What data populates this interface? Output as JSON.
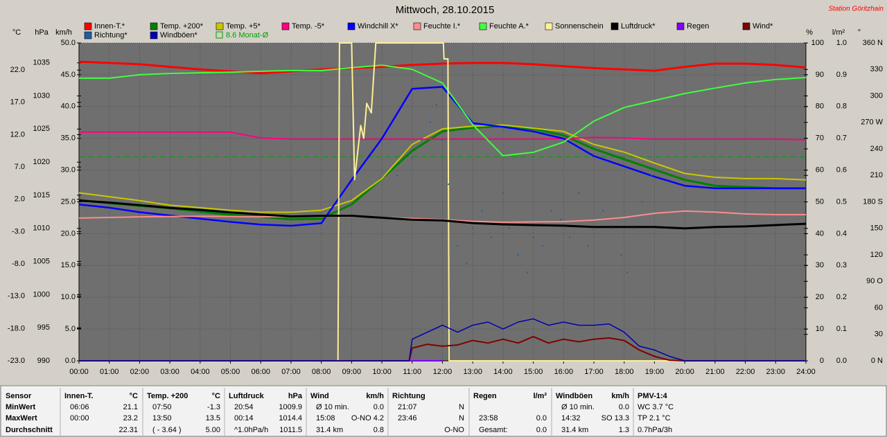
{
  "chart_data": {
    "type": "line",
    "title": "Mittwoch, 28.10.2015",
    "station": "Station Göritzhain",
    "xlim": [
      0,
      24
    ],
    "xticks": [
      {
        "value": 0,
        "label": "00:00"
      },
      {
        "value": 1,
        "label": "01:00"
      },
      {
        "value": 2,
        "label": "02:00"
      },
      {
        "value": 3,
        "label": "03:00"
      },
      {
        "value": 4,
        "label": "04:00"
      },
      {
        "value": 5,
        "label": "05:00"
      },
      {
        "value": 6,
        "label": "06:00"
      },
      {
        "value": 7,
        "label": "07:00"
      },
      {
        "value": 8,
        "label": "08:00"
      },
      {
        "value": 9,
        "label": "09:00"
      },
      {
        "value": 10,
        "label": "10:00"
      },
      {
        "value": 11,
        "label": "11:00"
      },
      {
        "value": 12,
        "label": "12:00"
      },
      {
        "value": 13,
        "label": "13:00"
      },
      {
        "value": 14,
        "label": "14:00"
      },
      {
        "value": 15,
        "label": "15:00"
      },
      {
        "value": 16,
        "label": "16:00"
      },
      {
        "value": 17,
        "label": "17:00"
      },
      {
        "value": 18,
        "label": "18:00"
      },
      {
        "value": 19,
        "label": "19:00"
      },
      {
        "value": 20,
        "label": "20:00"
      },
      {
        "value": 21,
        "label": "21:00"
      },
      {
        "value": 22,
        "label": "22:00"
      },
      {
        "value": 23,
        "label": "23:00"
      },
      {
        "value": 24,
        "label": "24:00"
      }
    ],
    "grid": true,
    "grid_axis": 2,
    "x": [
      0,
      1,
      2,
      3,
      4,
      5,
      6,
      7,
      8,
      9,
      10,
      11,
      12,
      13,
      14,
      15,
      16,
      17,
      18,
      19,
      20,
      21,
      22,
      23,
      24
    ],
    "y_axes": [
      {
        "unit": "°C",
        "side": "left",
        "lim": [
          -23,
          26.2
        ],
        "ticks": [
          {
            "value": -23,
            "label": "-23.0"
          },
          {
            "value": -18,
            "label": "-18.0"
          },
          {
            "value": -13,
            "label": "-13.0"
          },
          {
            "value": -8,
            "label": "-8.0"
          },
          {
            "value": -3,
            "label": "-3.0"
          },
          {
            "value": 2,
            "label": "2.0"
          },
          {
            "value": 7,
            "label": "7.0"
          },
          {
            "value": 12,
            "label": "12.0"
          },
          {
            "value": 17,
            "label": "17.0"
          },
          {
            "value": 22,
            "label": "22.0"
          }
        ]
      },
      {
        "unit": "hPa",
        "side": "left",
        "lim": [
          990,
          1038
        ],
        "ticks": [
          990,
          995,
          1000,
          1005,
          1010,
          1015,
          1020,
          1025,
          1030,
          1035
        ]
      },
      {
        "unit": "km/h",
        "side": "left",
        "lim": [
          0,
          50
        ],
        "ticks": [
          {
            "value": 0,
            "label": "0.0"
          },
          {
            "value": 5,
            "label": "5.0"
          },
          {
            "value": 10,
            "label": "10.0"
          },
          {
            "value": 15,
            "label": "15.0"
          },
          {
            "value": 20,
            "label": "20.0"
          },
          {
            "value": 25,
            "label": "25.0"
          },
          {
            "value": 30,
            "label": "30.0"
          },
          {
            "value": 35,
            "label": "35.0"
          },
          {
            "value": 40,
            "label": "40.0"
          },
          {
            "value": 45,
            "label": "45.0"
          },
          {
            "value": 50,
            "label": "50.0"
          }
        ]
      },
      {
        "unit": "%",
        "side": "right",
        "lim": [
          0,
          100
        ],
        "ticks": [
          0,
          10,
          20,
          30,
          40,
          50,
          60,
          70,
          80,
          90,
          100
        ]
      },
      {
        "unit": "l/m²",
        "side": "right",
        "lim": [
          0,
          1
        ],
        "ticks": [
          {
            "value": 0,
            "label": "0.0"
          },
          {
            "value": 0.1,
            "label": "0.1"
          },
          {
            "value": 0.2,
            "label": "0.2"
          },
          {
            "value": 0.3,
            "label": "0.3"
          },
          {
            "value": 0.4,
            "label": "0.4"
          },
          {
            "value": 0.5,
            "label": "0.5"
          },
          {
            "value": 0.6,
            "label": "0.6"
          },
          {
            "value": 0.7,
            "label": "0.7"
          },
          {
            "value": 0.8,
            "label": "0.8"
          },
          {
            "value": 0.9,
            "label": "0.9"
          },
          {
            "value": 1,
            "label": "1.0"
          }
        ]
      },
      {
        "unit": "°",
        "side": "right",
        "lim": [
          0,
          360
        ],
        "ticks": [
          {
            "value": 0,
            "label": "0 N"
          },
          30,
          60,
          {
            "value": 90,
            "label": "90 O"
          },
          120,
          150,
          {
            "value": 180,
            "label": "180 S"
          },
          210,
          240,
          {
            "value": 270,
            "label": "270 W"
          },
          300,
          330,
          {
            "value": 360,
            "label": "360 N"
          }
        ]
      }
    ],
    "series": [
      {
        "name": "Innen-T.*",
        "color": "#ff0000",
        "axis": 0,
        "width": 3,
        "values": [
          23.3,
          23.1,
          22.9,
          22.5,
          22.1,
          21.8,
          21.5,
          21.8,
          22.1,
          22.3,
          22.5,
          22.8,
          23.0,
          23.1,
          23.1,
          22.9,
          22.6,
          22.3,
          22.1,
          21.9,
          22.5,
          23.0,
          23.0,
          22.8,
          22.4
        ]
      },
      {
        "name": "Temp. +200*",
        "color": "#008000",
        "axis": 0,
        "width": 3,
        "values": [
          1.9,
          1.4,
          1.0,
          0.6,
          0.1,
          -0.4,
          -0.7,
          -1.1,
          -1.0,
          1.2,
          5.2,
          9.5,
          12.5,
          13.1,
          13.3,
          12.9,
          11.9,
          9.8,
          8.2,
          6.6,
          5.0,
          4.1,
          3.9,
          3.7,
          3.7
        ]
      },
      {
        "name": "Temp. +5*",
        "color": "#c8c800",
        "axis": 0,
        "width": 2,
        "values": [
          3.0,
          2.4,
          1.8,
          1.1,
          0.7,
          0.3,
          0.0,
          0.0,
          0.3,
          1.8,
          5.2,
          10.5,
          12.9,
          13.3,
          13.5,
          13.0,
          12.5,
          10.5,
          9.3,
          7.6,
          6.0,
          5.4,
          5.2,
          5.2,
          5.0
        ]
      },
      {
        "name": "Temp. -5*",
        "color": "#ff0080",
        "axis": 0,
        "width": 2,
        "values": [
          12.4,
          12.4,
          12.4,
          12.4,
          12.4,
          12.4,
          11.5,
          11.3,
          11.3,
          11.3,
          11.3,
          11.3,
          11.3,
          11.3,
          11.3,
          11.3,
          11.4,
          11.6,
          11.5,
          11.3,
          11.3,
          11.3,
          11.3,
          11.3,
          11.2
        ]
      },
      {
        "name": "Windchill X*",
        "color": "#0000ff",
        "axis": 0,
        "width": 2.5,
        "values": [
          1.2,
          0.7,
          0.0,
          -0.5,
          -1.0,
          -1.5,
          -1.9,
          -2.1,
          -1.7,
          5.0,
          11.4,
          19.1,
          19.4,
          13.8,
          13.2,
          12.5,
          11.4,
          8.7,
          7.1,
          5.5,
          4.1,
          3.7,
          3.7,
          3.7,
          3.7
        ]
      },
      {
        "name": "Feuchte I.*",
        "color": "#ff8c8c",
        "axis": 3,
        "width": 2,
        "values": [
          44.9,
          45.1,
          45.3,
          45.4,
          45.5,
          45.4,
          45.3,
          45.4,
          45.5,
          45.4,
          45.1,
          44.8,
          44.4,
          43.9,
          43.6,
          43.7,
          43.8,
          44.3,
          45.1,
          46.4,
          47.1,
          46.8,
          46.2,
          46.0,
          46.0
        ]
      },
      {
        "name": "Feuchte A.*",
        "color": "#40ff40",
        "axis": 3,
        "width": 2,
        "values": [
          88.9,
          88.9,
          90.0,
          90.4,
          90.6,
          90.8,
          91.1,
          91.3,
          91.3,
          92.2,
          93.0,
          91.7,
          87.4,
          74.3,
          64.5,
          65.6,
          68.8,
          75.4,
          79.7,
          81.9,
          84.1,
          85.8,
          87.4,
          88.5,
          89.1
        ]
      },
      {
        "name": "Sonnenschein",
        "color": "#ffef99",
        "axis": 3,
        "width": 2,
        "x": [
          0,
          8.55,
          8.6,
          9.0,
          9.1,
          9.3,
          9.4,
          9.5,
          9.65,
          9.8,
          12.03,
          12.05,
          12.18,
          12.22,
          24
        ],
        "values": [
          0,
          0,
          100,
          100,
          57,
          74,
          70,
          81,
          78,
          100,
          100,
          95,
          95,
          0,
          0
        ]
      },
      {
        "name": "Luftdruck*",
        "color": "#000000",
        "axis": 1,
        "width": 3,
        "values": [
          1014.2,
          1013.9,
          1013.5,
          1013.1,
          1012.8,
          1012.4,
          1012.1,
          1011.8,
          1011.9,
          1011.9,
          1011.6,
          1011.3,
          1011.2,
          1010.8,
          1010.6,
          1010.5,
          1010.4,
          1010.2,
          1010.2,
          1010.2,
          1010.0,
          1010.2,
          1010.3,
          1010.5,
          1010.7
        ]
      },
      {
        "name": "Regen",
        "color": "#8000ff",
        "axis": 4,
        "width": 2,
        "x": [
          9,
          12
        ],
        "values": [
          0,
          0
        ]
      },
      {
        "name": "Wind*",
        "color": "#800000",
        "axis": 2,
        "width": 2,
        "x": [
          0,
          10.9,
          11,
          11.5,
          12,
          12.5,
          13,
          13.5,
          14,
          14.5,
          15,
          15.5,
          16,
          16.5,
          17,
          17.5,
          18,
          18.5,
          19,
          19.5,
          20,
          24
        ],
        "values": [
          0,
          0,
          2.0,
          2.6,
          2.3,
          2.5,
          3.2,
          2.8,
          3.4,
          2.8,
          3.8,
          2.8,
          3.4,
          3.0,
          3.4,
          3.6,
          3.2,
          1.7,
          0.7,
          0.1,
          0,
          0
        ]
      },
      {
        "name": "Richtung*",
        "color": "#1f5fa0",
        "axis": 5,
        "mark": "dot",
        "x": [
          10.5,
          11.0,
          11.3,
          11.6,
          11.8,
          12.0,
          12.2,
          12.5,
          12.8,
          13.0,
          13.3,
          13.6,
          14.0,
          14.2,
          14.5,
          14.8,
          15.0,
          15.3,
          15.6,
          15.9,
          16.2,
          16.5,
          16.8,
          17.0,
          17.3,
          17.6,
          17.9,
          18.1,
          18.3,
          18.6,
          18.9
        ],
        "values": [
          210,
          230,
          250,
          270,
          290,
          250,
          200,
          130,
          110,
          150,
          170,
          140,
          190,
          150,
          120,
          100,
          140,
          130,
          170,
          160,
          140,
          190,
          130,
          150,
          170,
          150,
          120,
          100,
          150,
          180,
          210
        ]
      },
      {
        "name": "Windböen*",
        "color": "#0000b0",
        "axis": 2,
        "width": 1.5,
        "x": [
          0,
          10.9,
          11,
          11.5,
          12,
          12.5,
          13,
          13.5,
          14,
          14.5,
          15,
          15.5,
          16,
          16.5,
          17,
          17.5,
          18,
          18.5,
          19,
          19.5,
          20,
          24
        ],
        "values": [
          0,
          0,
          3.4,
          4.5,
          5.6,
          4.5,
          5.6,
          6.1,
          5.0,
          6.1,
          6.6,
          5.6,
          6.1,
          5.6,
          5.6,
          5.8,
          4.5,
          2.3,
          1.7,
          0.7,
          0,
          0
        ]
      }
    ],
    "monthly_avg": {
      "label": "8.6 Monat-Ø",
      "value": 8.6,
      "axis": 0,
      "color": "#00a000"
    }
  },
  "stats": {
    "row_labels": [
      "Sensor",
      "MinWert",
      "MaxWert",
      "Durchschnitt"
    ],
    "columns": [
      {
        "title": "Innen-T.",
        "unit": "°C",
        "rows": [
          [
            "06:06",
            "21.1"
          ],
          [
            "00:00",
            "23.2"
          ],
          [
            null,
            "22.31"
          ]
        ]
      },
      {
        "title": "Temp. +200",
        "unit": "°C",
        "rows": [
          [
            "07:50",
            "-1.3"
          ],
          [
            "13:50",
            "13.5"
          ],
          [
            "( - 3.64 )",
            "5.00"
          ]
        ]
      },
      {
        "title": "Luftdruck",
        "unit": "hPa",
        "rows": [
          [
            "20:54",
            "1009.9"
          ],
          [
            "00:14",
            "1014.4"
          ],
          [
            "^1.0hPa/h",
            "1011.5"
          ]
        ]
      },
      {
        "title": "Wind",
        "unit": "km/h",
        "rows": [
          [
            "Ø 10 min.",
            "0.0"
          ],
          [
            "15:08",
            "O-NO 4.2"
          ],
          [
            "31.4 km",
            "0.8"
          ]
        ]
      },
      {
        "title": "Richtung",
        "rows": [
          [
            "21:07",
            "N"
          ],
          [
            "23:46",
            "N"
          ],
          [
            null,
            "O-NO"
          ]
        ]
      },
      {
        "title": "Regen",
        "unit": "l/m²",
        "rows": [
          [
            null,
            null
          ],
          [
            "23:58",
            "0.0"
          ],
          [
            "Gesamt:",
            "0.0"
          ]
        ]
      },
      {
        "title": "Windböen",
        "unit": "km/h",
        "rows": [
          [
            "Ø 10 min.",
            "0.0"
          ],
          [
            "14:32",
            "SO 13.3"
          ],
          [
            "31.4 km",
            "1.3"
          ]
        ]
      },
      {
        "title": "PMV-1:4",
        "rows": [
          [
            "WC 3.7 °C",
            null
          ],
          [
            "TP 2.1 °C",
            null
          ],
          [
            "0.7hPa/3h",
            null
          ]
        ]
      }
    ]
  }
}
